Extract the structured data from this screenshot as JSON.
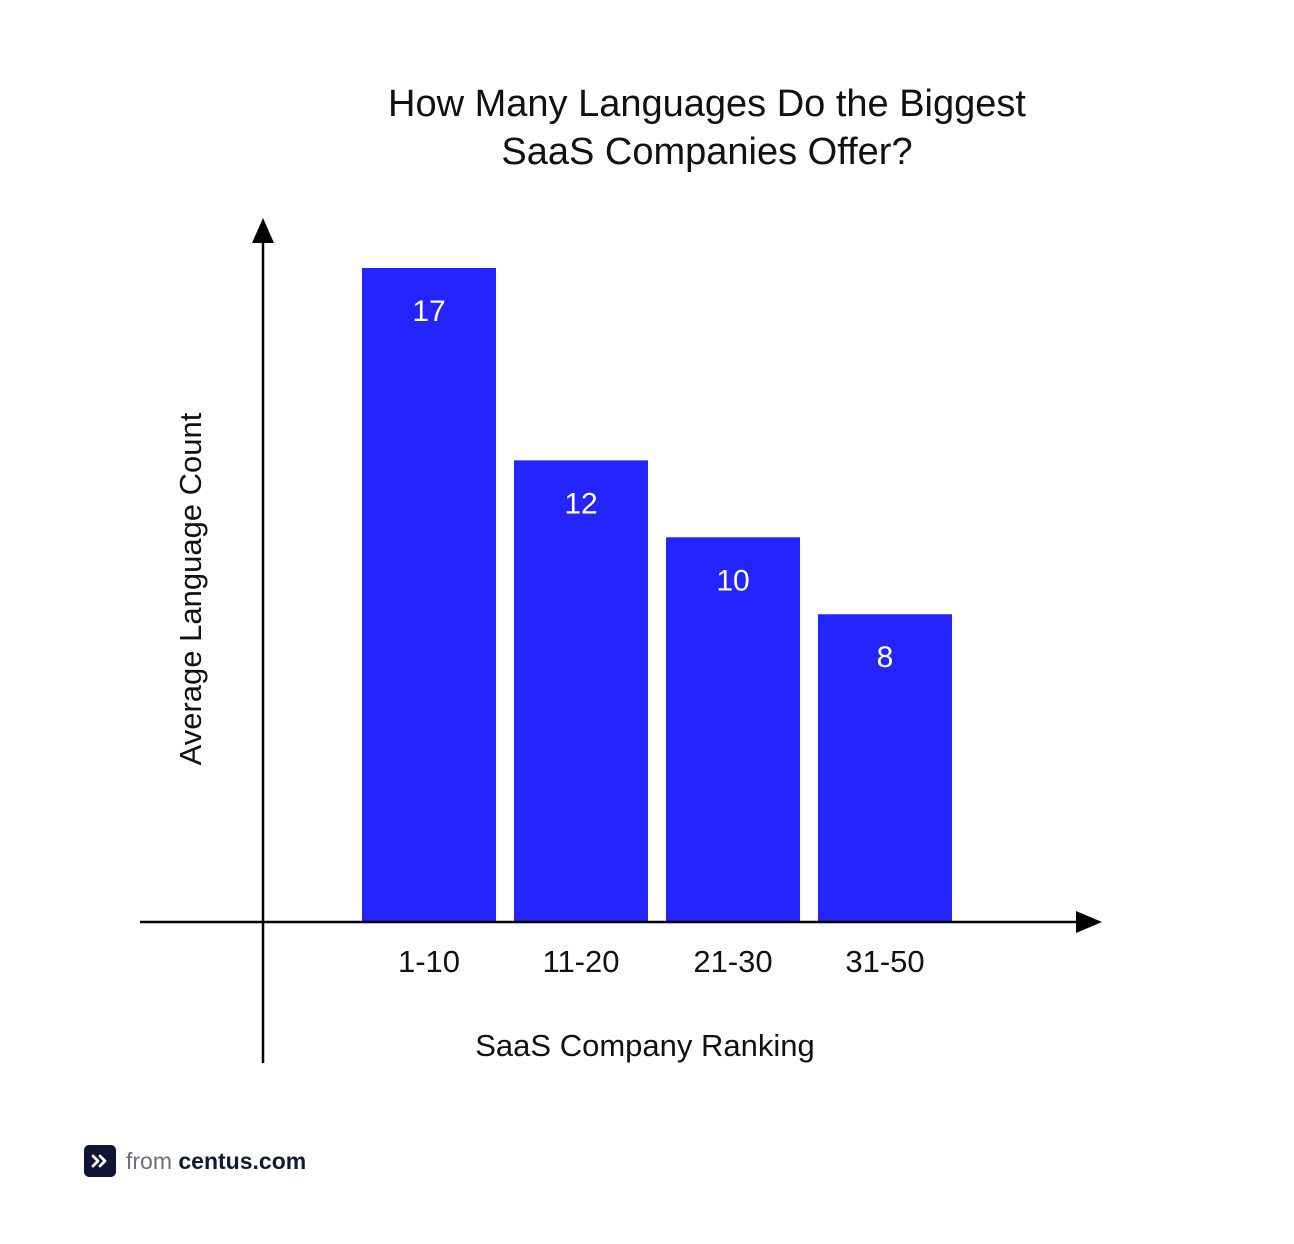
{
  "chart_data": {
    "type": "bar",
    "title_lines": [
      "How Many Languages Do the Biggest",
      "SaaS Companies Offer?"
    ],
    "xlabel": "SaaS Company Ranking",
    "ylabel": "Average Language Count",
    "categories": [
      "1-10",
      "11-20",
      "21-30",
      "31-50"
    ],
    "values": [
      17,
      12,
      10,
      8
    ],
    "data_labels": [
      "17",
      "12",
      "10",
      "8"
    ],
    "ylim": [
      0,
      17
    ],
    "grid": false,
    "legend": "none",
    "bar_color": "#2424ff",
    "axis_color": "#000000"
  },
  "footer": {
    "prefix": "from",
    "brand": "centus.com",
    "icon": "double-chevron-right-icon"
  }
}
